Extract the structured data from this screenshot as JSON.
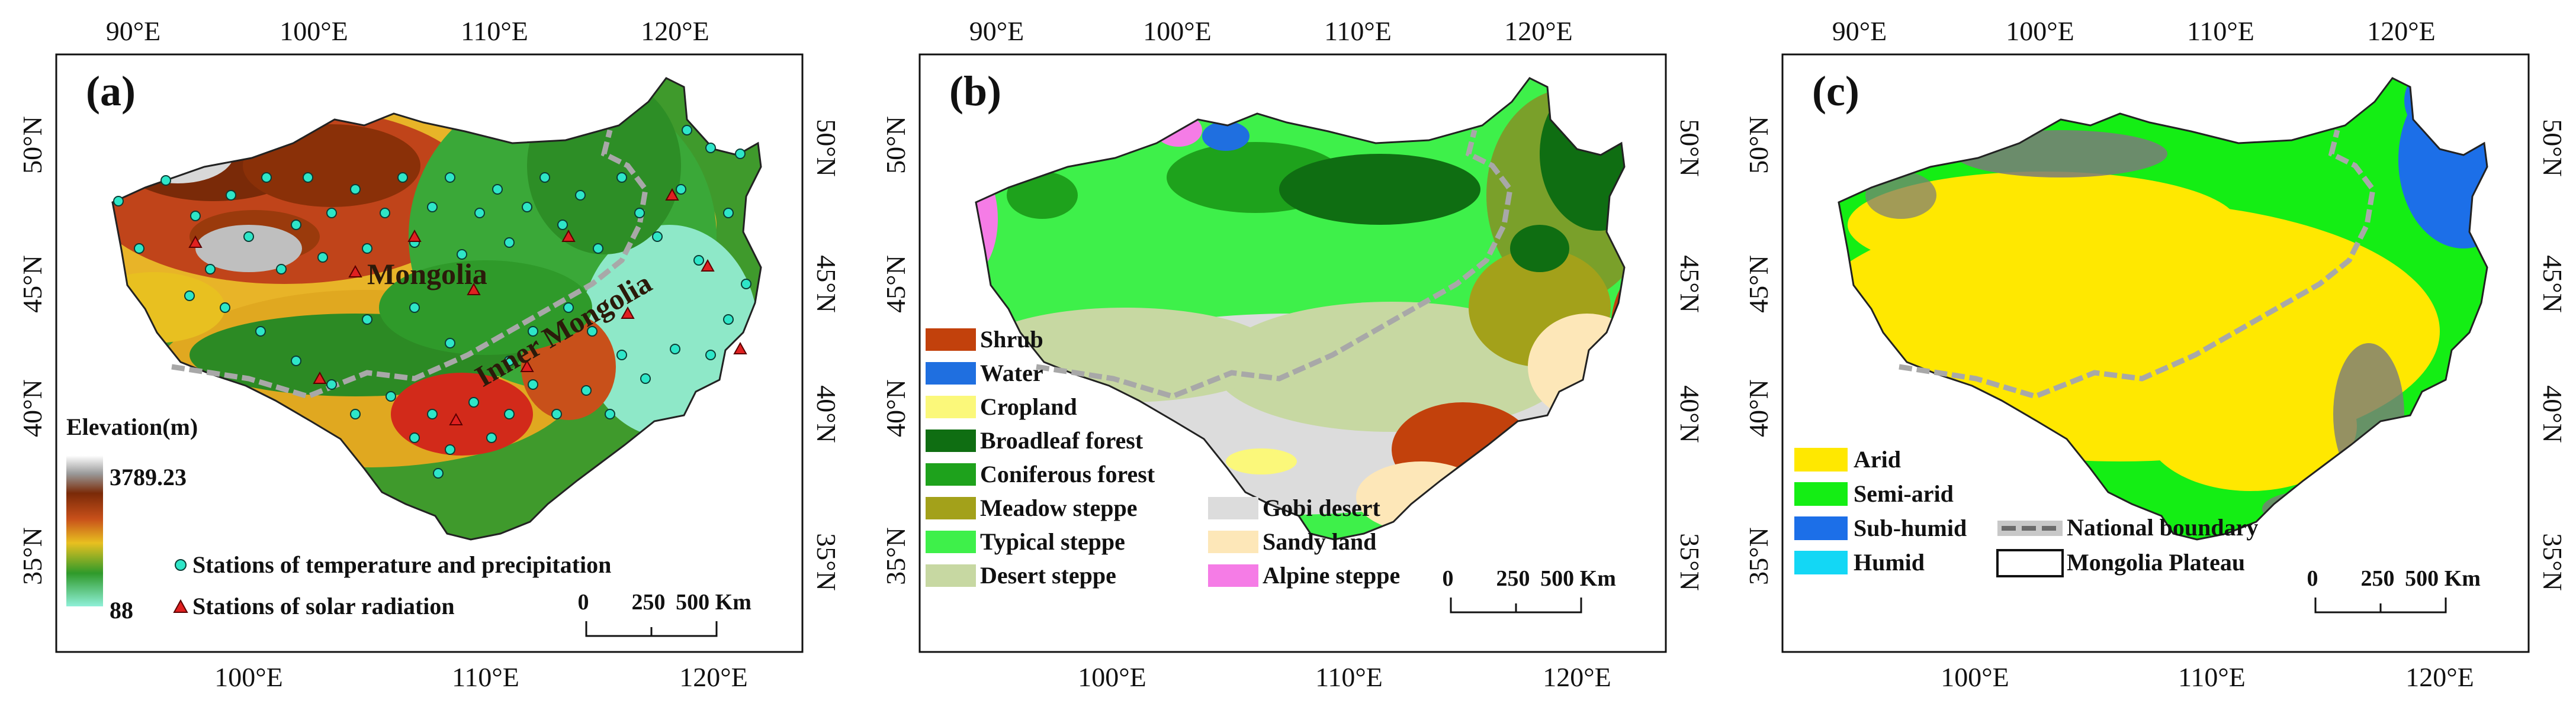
{
  "colors": {
    "shrub": "#c2410c",
    "water": "#1f6fe0",
    "cropland": "#fbf87a",
    "broadleaf": "#0f6e12",
    "coniferous": "#1ea21c",
    "meadow": "#a3a11a",
    "typical": "#3ef04a",
    "desert_steppe": "#c7d8a2",
    "gobi": "#dcdcdc",
    "sandy": "#fde7b8",
    "alpine": "#f57ce6",
    "arid": "#ffe800",
    "semi_arid": "#14ee14",
    "sub_humid": "#1c6fe8",
    "humid": "#13d7f5",
    "temp_station": "#2ee6c8",
    "solar_station": "#e02020",
    "boundary": "#a8a8a8"
  },
  "panels": [
    {
      "label": "(a)",
      "top_ticks": [
        "90°E",
        "100°E",
        "110°E",
        "120°E"
      ],
      "bottom_ticks": [
        "100°E",
        "110°E",
        "120°E"
      ],
      "left_ticks": [
        "50°N",
        "45°N",
        "40°N",
        "35°N"
      ],
      "right_ticks": [
        "50°N",
        "45°N",
        "40°N",
        "35°N"
      ],
      "legend_title": "Elevation(m)",
      "elev_max": "3789.23",
      "elev_min": "88",
      "legend_items": [
        {
          "label": "Stations of temperature and precipitation",
          "icon": "circle-marker"
        },
        {
          "label": "Stations of solar radiation",
          "icon": "triangle-marker"
        }
      ],
      "region_labels": [
        "Mongolia",
        "Inner Mongolia"
      ],
      "scale": [
        "0",
        "250",
        "500 Km"
      ]
    },
    {
      "label": "(b)",
      "top_ticks": [
        "90°E",
        "100°E",
        "110°E",
        "120°E"
      ],
      "bottom_ticks": [
        "100°E",
        "110°E",
        "120°E"
      ],
      "left_ticks": [
        "50°N",
        "45°N",
        "40°N",
        "35°N"
      ],
      "right_ticks": [
        "50°N",
        "45°N",
        "40°N",
        "35°N"
      ],
      "legend_left": [
        "Shrub",
        "Water",
        "Cropland",
        "Broadleaf forest",
        "Coniferous forest",
        "Meadow steppe",
        "Typical steppe",
        "Desert steppe"
      ],
      "legend_right": [
        "Gobi desert",
        "Sandy land",
        "Alpine steppe"
      ],
      "scale": [
        "0",
        "250",
        "500 Km"
      ]
    },
    {
      "label": "(c)",
      "top_ticks": [
        "90°E",
        "100°E",
        "110°E",
        "120°E"
      ],
      "bottom_ticks": [
        "100°E",
        "110°E",
        "120°E"
      ],
      "left_ticks": [
        "50°N",
        "45°N",
        "40°N",
        "35°N"
      ],
      "right_ticks": [
        "50°N",
        "45°N",
        "40°N",
        "35°N"
      ],
      "legend_items": [
        "Arid",
        "Semi-arid",
        "Sub-humid",
        "Humid"
      ],
      "boundary_label": "National boundary",
      "plateau_label": "Mongolia Plateau",
      "scale": [
        "0",
        "250",
        "500 Km"
      ]
    }
  ]
}
